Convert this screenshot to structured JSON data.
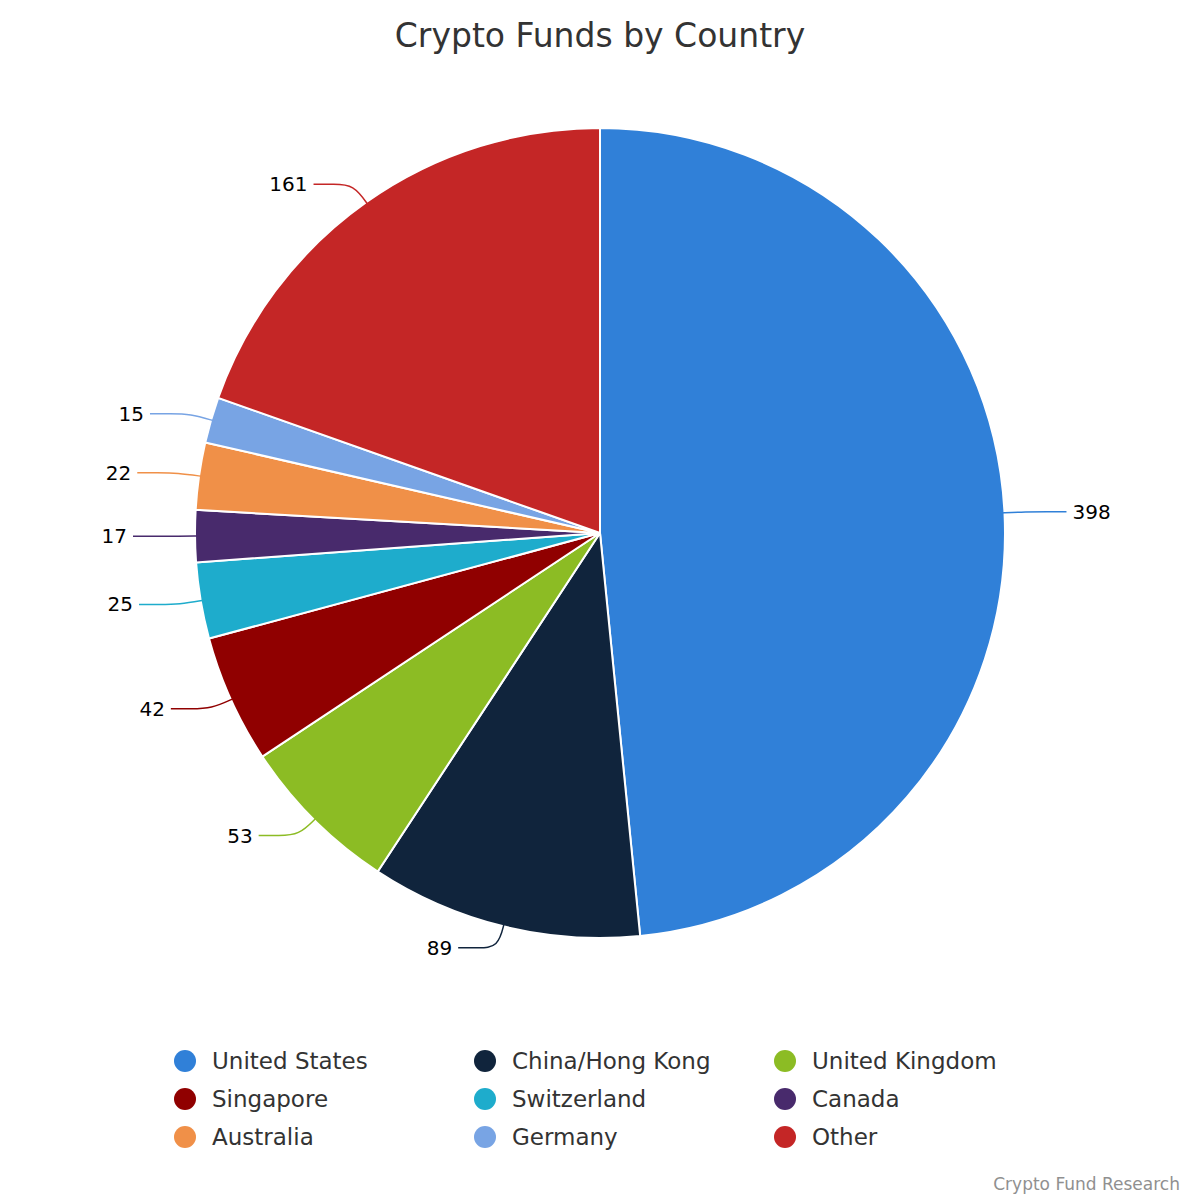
{
  "chart_data": {
    "type": "pie",
    "title": "Crypto Funds by Country",
    "categories": [
      "United States",
      "China/Hong Kong",
      "United Kingdom",
      "Singapore",
      "Switzerland",
      "Canada",
      "Australia",
      "Germany",
      "Other"
    ],
    "values": [
      398,
      89,
      53,
      42,
      25,
      17,
      22,
      15,
      161
    ],
    "colors": [
      "#3080d8",
      "#10243c",
      "#8cbc24",
      "#900000",
      "#1eaccc",
      "#482a6c",
      "#f09048",
      "#78a4e4",
      "#c42626"
    ],
    "data_labels": true,
    "legend": "bottom",
    "source": "Crypto Fund Research"
  }
}
